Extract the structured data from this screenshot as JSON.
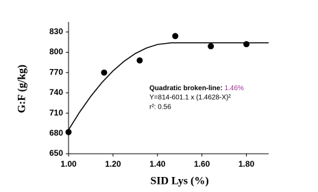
{
  "chart_data": {
    "type": "scatter",
    "x_label": "SID Lys (%)",
    "y_label": "G:F (g/kg)",
    "xlim": [
      1.0,
      1.9
    ],
    "ylim": [
      650,
      845
    ],
    "xticks": [
      {
        "value": 1.0,
        "label": "1.00"
      },
      {
        "value": 1.2,
        "label": "1.20"
      },
      {
        "value": 1.4,
        "label": "1.40"
      },
      {
        "value": 1.6,
        "label": "1.60"
      },
      {
        "value": 1.8,
        "label": "1.80"
      }
    ],
    "yticks": [
      650,
      680,
      710,
      740,
      770,
      800,
      830
    ],
    "points": {
      "color": "#000000",
      "x": [
        1.0,
        1.16,
        1.32,
        1.48,
        1.64,
        1.8
      ],
      "values": [
        682,
        770,
        788,
        824,
        809,
        812
      ]
    },
    "fit": {
      "color": "#000000",
      "x": [
        1.0,
        1.05,
        1.1,
        1.15,
        1.2,
        1.25,
        1.3,
        1.35,
        1.4,
        1.4628,
        1.9
      ],
      "values": [
        685.3,
        711.6,
        734.9,
        755.2,
        772.5,
        786.8,
        798.1,
        806.3,
        811.6,
        814,
        814
      ]
    },
    "annotation": {
      "label": "Quadratic broken-line:",
      "value": "1.46%",
      "value_color": "#a0309a",
      "equation": "Y=814-601.1 x (1.4628-X)²",
      "r2": "r²: 0.56"
    }
  }
}
